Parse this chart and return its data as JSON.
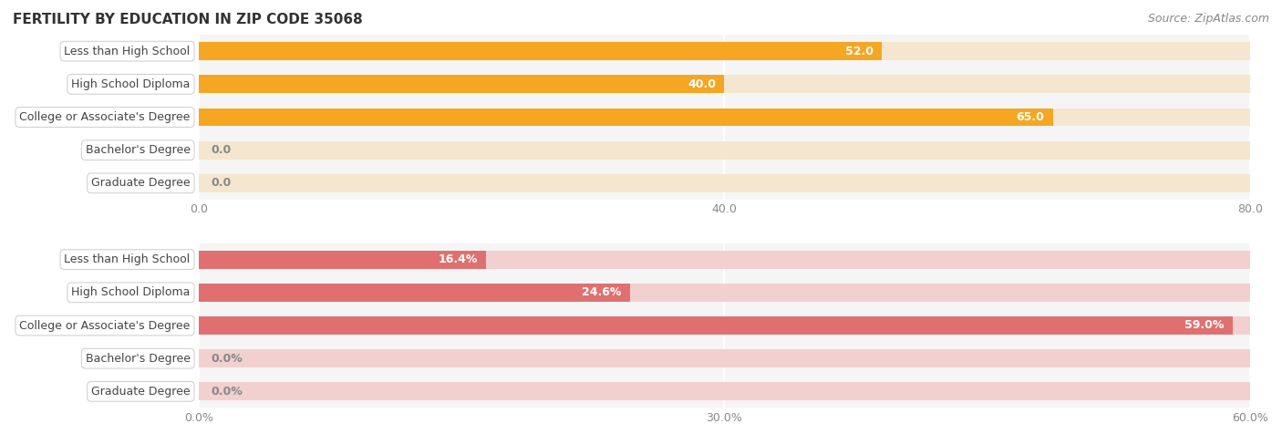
{
  "title": "FERTILITY BY EDUCATION IN ZIP CODE 35068",
  "source": "Source: ZipAtlas.com",
  "top_chart": {
    "categories": [
      "Less than High School",
      "High School Diploma",
      "College or Associate's Degree",
      "Bachelor's Degree",
      "Graduate Degree"
    ],
    "values": [
      52.0,
      40.0,
      65.0,
      0.0,
      0.0
    ],
    "bar_color": "#F5A623",
    "bar_bg_color": "#F5E6D0",
    "xlim": [
      0,
      80
    ],
    "xticks": [
      0.0,
      40.0,
      80.0
    ],
    "xtick_labels": [
      "0.0",
      "40.0",
      "80.0"
    ]
  },
  "bottom_chart": {
    "categories": [
      "Less than High School",
      "High School Diploma",
      "College or Associate's Degree",
      "Bachelor's Degree",
      "Graduate Degree"
    ],
    "values": [
      16.4,
      24.6,
      59.0,
      0.0,
      0.0
    ],
    "bar_color": "#E07070",
    "bar_bg_color": "#F2D0D0",
    "xlim": [
      0,
      60
    ],
    "xticks": [
      0.0,
      30.0,
      60.0
    ],
    "xtick_labels": [
      "0.0%",
      "30.0%",
      "60.0%"
    ]
  },
  "fig_bg_color": "#FFFFFF",
  "panel_bg_color": "#F5F5F5",
  "bar_height": 0.55,
  "label_fontsize": 9,
  "title_fontsize": 11,
  "source_fontsize": 9,
  "category_fontsize": 9
}
